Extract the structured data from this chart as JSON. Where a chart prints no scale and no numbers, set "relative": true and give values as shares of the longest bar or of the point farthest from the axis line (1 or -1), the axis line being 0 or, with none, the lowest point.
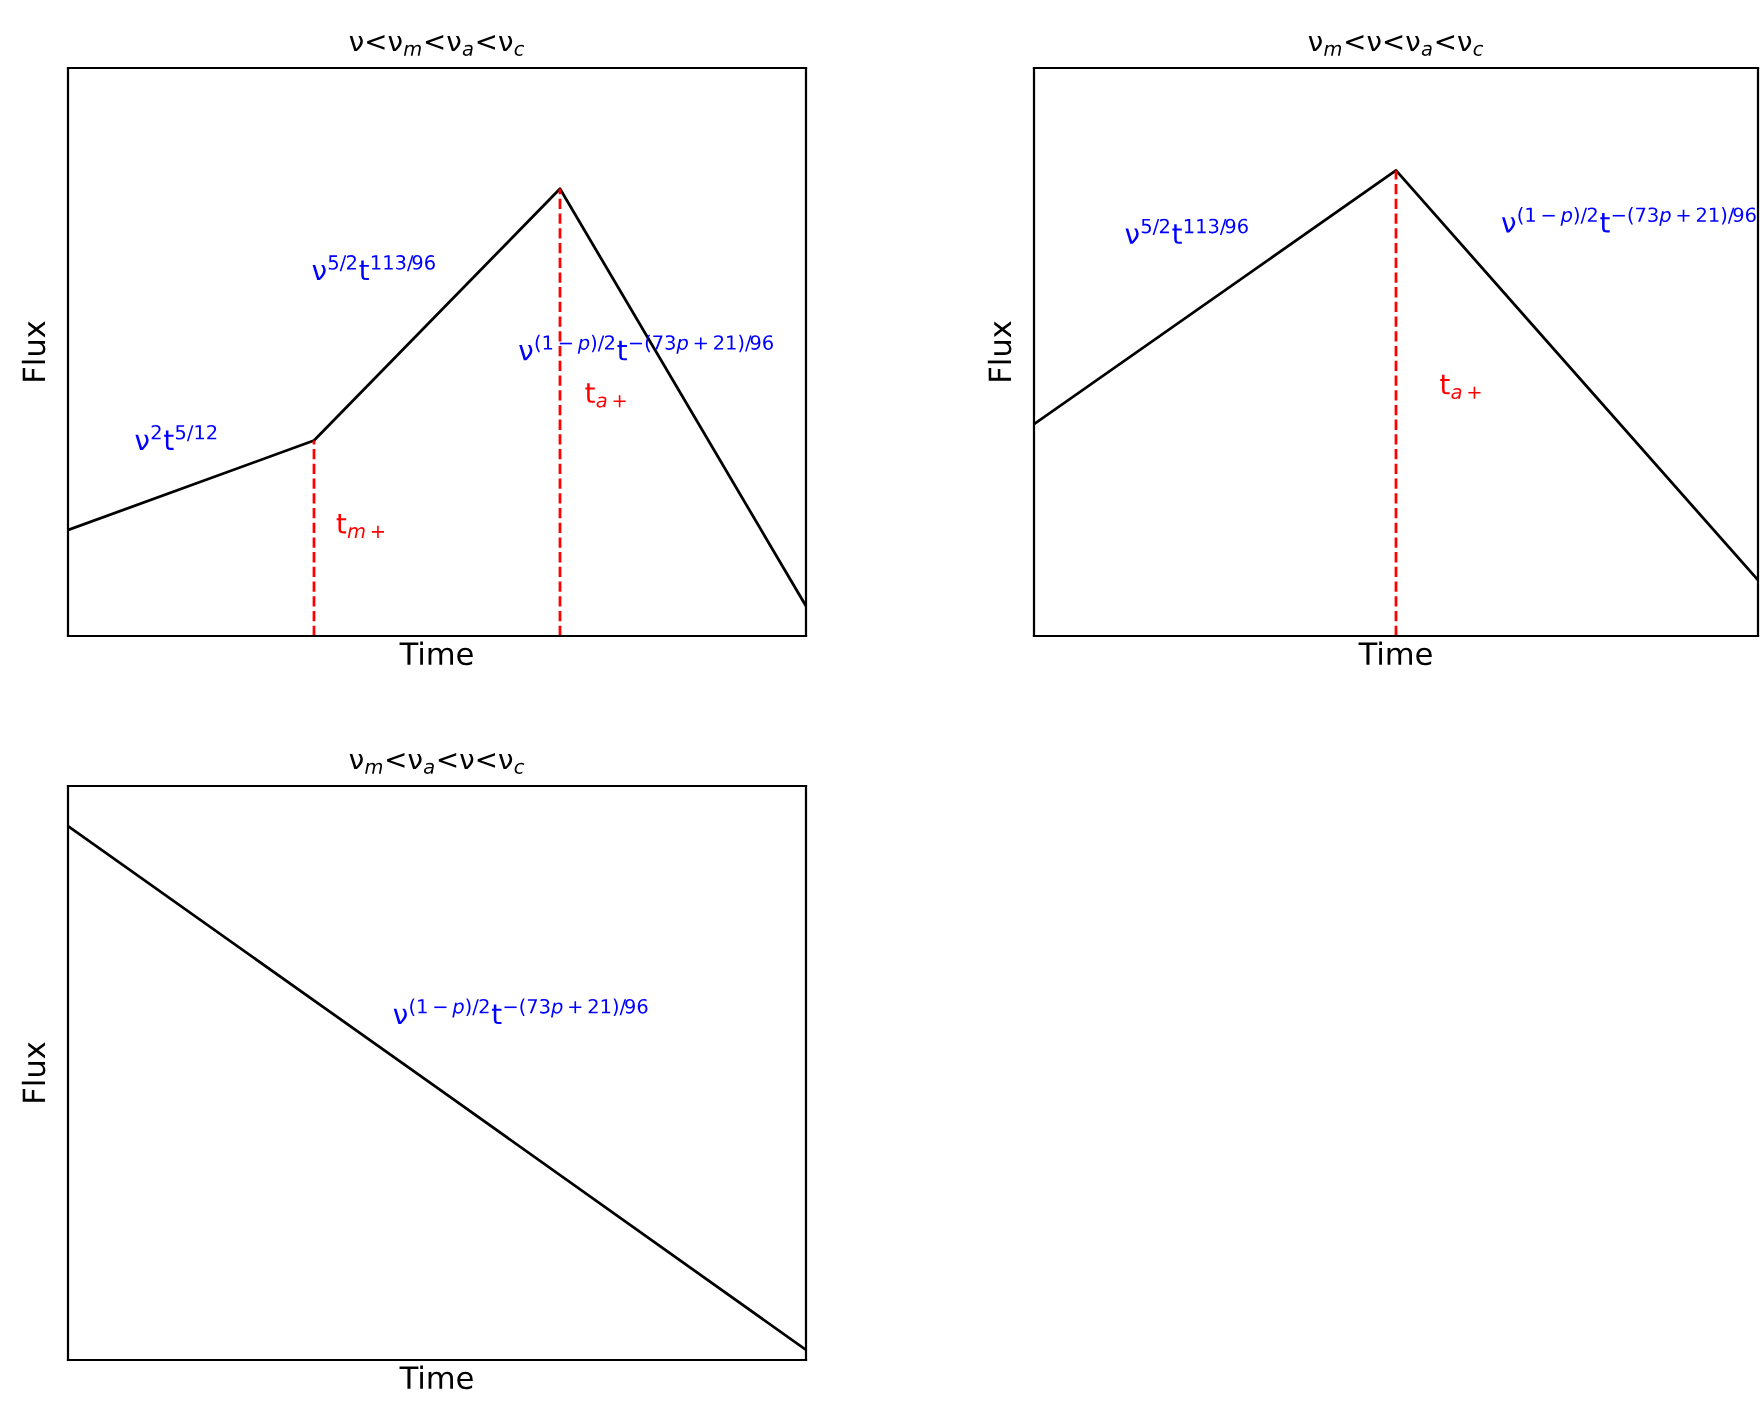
{
  "chart_data": [
    {
      "type": "line",
      "title": "ν<ν$_{m}$<ν$_{a}$<ν$_{c}$",
      "xlabel": "Time",
      "ylabel": "Flux",
      "relative": true,
      "tick_labels": false,
      "categories": [
        null,
        null,
        null,
        null
      ],
      "series": [
        {
          "color": "#000000",
          "values": [
            0.237,
            0.437,
            1,
            0.067
          ]
        }
      ],
      "annotations": [
        "ν$^{2}$t$^{5/12}$",
        "ν$^{5/2}$t$^{113/96}$",
        "ν$^{(1−p)/2}$t$^{−(73p+21)/96}$",
        "t$_{m+}$",
        "t$_{a+}$"
      ]
    },
    {
      "type": "line",
      "title": "ν$_{m}$<ν<ν$_{a}$<ν$_{c}$",
      "xlabel": "Time",
      "ylabel": "Flux",
      "relative": true,
      "tick_labels": false,
      "categories": [
        null,
        null,
        null
      ],
      "series": [
        {
          "color": "#000000",
          "values": [
            0.455,
            1,
            0.12
          ]
        }
      ],
      "annotations": [
        "ν$^{5/2}$t$^{113/96}$",
        "ν$^{(1−p)/2}$t$^{−(73p+21)/96}$",
        "t$_{a+}$"
      ]
    },
    {
      "type": "line",
      "title": "ν$_{m}$<ν$_{a}$<ν<ν$_{c}$",
      "xlabel": "Time",
      "ylabel": "Flux",
      "relative": true,
      "tick_labels": false,
      "categories": [
        null,
        null,
        null
      ],
      "series": [
        {
          "color": "#000000",
          "values": [
            1,
            0.51,
            0.019
          ]
        }
      ],
      "annotations": [
        "ν$^{(1−p)/2}$t$^{−(73p+21)/96}$"
      ]
    }
  ]
}
